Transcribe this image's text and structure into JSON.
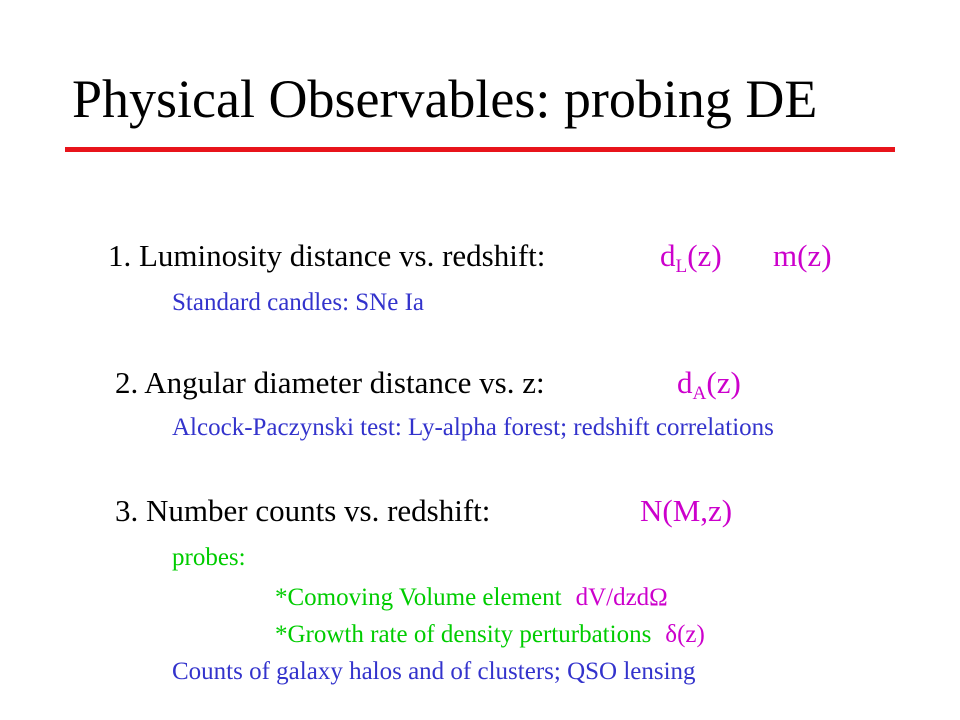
{
  "slide": {
    "title": "Physical Observables: probing DE",
    "colors": {
      "rule": "#e8141b",
      "observable": "#cc00cc",
      "method": "#3333cc",
      "probe": "#00cc00"
    },
    "items": [
      {
        "heading": "1. Luminosity distance vs. redshift:",
        "observable_base": "d",
        "observable_subscript": "L",
        "observable_arg": "(z)",
        "observable_extra": "m(z)",
        "detail": "Standard candles: SNe Ia"
      },
      {
        "heading": "2. Angular diameter distance vs. z:",
        "observable_base": "d",
        "observable_subscript": "A",
        "observable_arg": "(z)",
        "detail": "Alcock-Paczynski test: Ly-alpha forest; redshift correlations"
      },
      {
        "heading": "3. Number counts vs. redshift:",
        "observable": "N(M,z)",
        "probes_label": "probes:",
        "probe_items": [
          {
            "text": "*Comoving Volume element",
            "formula": "dV/dzdΩ"
          },
          {
            "text": "*Growth rate of density perturbations",
            "formula": "δ(z)"
          }
        ],
        "detail": "Counts of galaxy halos and of clusters; QSO lensing"
      }
    ]
  }
}
